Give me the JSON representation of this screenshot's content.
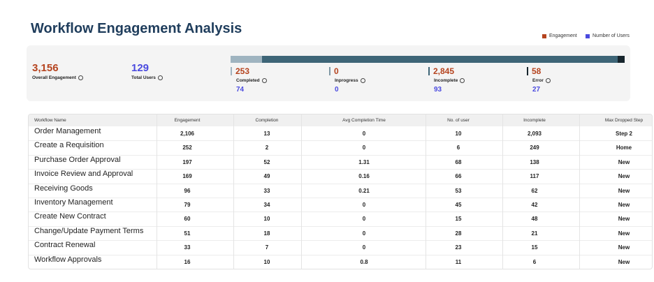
{
  "header": {
    "title": "Workflow Engagement Analysis"
  },
  "legend": [
    {
      "label": "Engagement",
      "color": "#b5431e"
    },
    {
      "label": "Number of Users",
      "color": "#4a4adf"
    }
  ],
  "summary": {
    "overall": {
      "value": {
        "value": 3156,
        "label": "3,156"
      },
      "label": "Overall Engagement"
    },
    "users": {
      "value": 129,
      "label": "Total Users"
    }
  },
  "statuses": [
    {
      "name": "Completed",
      "engagement": 253,
      "users": 74,
      "color": "#9fb4c0"
    },
    {
      "name": "Inprogress",
      "engagement": 0,
      "users": 0,
      "color": "#7f98a5"
    },
    {
      "name": "Incomplete",
      "engagement": {
        "value": 2845,
        "label": "2,845"
      },
      "users": 93,
      "color": "#3e6577"
    },
    {
      "name": "Error",
      "engagement": 58,
      "users": 27,
      "color": "#17252d"
    }
  ],
  "table": {
    "columns": [
      "Workflow Name",
      "Engagement",
      "Completion",
      "Avg Completion Time",
      "No. of user",
      "Incomplete",
      "Max Dropped Step"
    ],
    "rows": [
      [
        "Order Management",
        "2,106",
        13,
        0,
        10,
        "2,093",
        "Step 2"
      ],
      [
        "Create a Requisition",
        252,
        2,
        0,
        6,
        249,
        "Home"
      ],
      [
        "Purchase Order Approval",
        197,
        52,
        1.31,
        68,
        138,
        "New"
      ],
      [
        "Invoice Review and Approval",
        169,
        49,
        0.16,
        66,
        117,
        "New"
      ],
      [
        "Receiving Goods",
        96,
        33,
        0.21,
        53,
        62,
        "New"
      ],
      [
        "Inventory Management",
        79,
        34,
        0,
        45,
        42,
        "New"
      ],
      [
        "Create New Contract",
        60,
        10,
        0,
        15,
        48,
        "New"
      ],
      [
        "Change/Update Payment Terms",
        51,
        18,
        0,
        28,
        21,
        "New"
      ],
      [
        "Contract Renewal",
        33,
        7,
        0,
        23,
        15,
        "New"
      ],
      [
        "Workflow Approvals",
        16,
        10,
        0.8,
        11,
        6,
        "New"
      ]
    ]
  }
}
